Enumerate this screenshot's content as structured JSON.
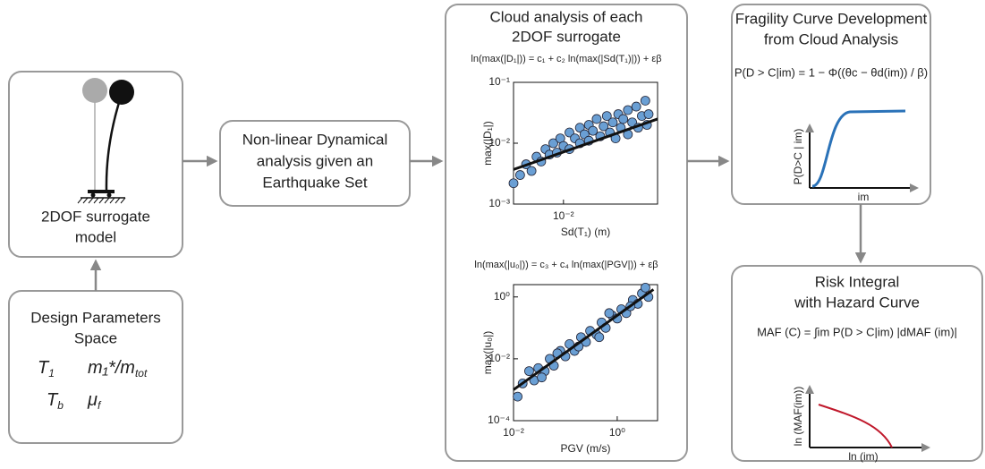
{
  "model_box": {
    "label_lines": [
      "2DOF surrogate",
      "model"
    ]
  },
  "design_box": {
    "label_lines": [
      "Design Parameters",
      "Space"
    ],
    "parameters": [
      {
        "symbol": "T",
        "subscript": "1"
      },
      {
        "symbol": "m₁*/m",
        "subscript": "tot"
      },
      {
        "symbol": "T",
        "subscript": "b"
      },
      {
        "symbol": "μ",
        "subscript": "f"
      }
    ]
  },
  "analysis_box": {
    "label_lines": [
      "Non-linear Dynamical",
      "analysis given an",
      "Earthquake Set"
    ]
  },
  "cloud_analysis": {
    "title_lines": [
      "Cloud analysis of each",
      "2DOF surrogate"
    ],
    "plots": [
      {
        "equation": "ln(max(|D₁|)) = c₁ + c₂ ln(max(|Sd(T₁)|)) + εβ",
        "x_label": "Sd(T₁) (m)",
        "y_label": "max(|D₁|)",
        "xlim": [
          0.0045,
          0.045
        ],
        "ylim": [
          0.001,
          0.1
        ],
        "xticks": [
          {
            "value": 0.01,
            "label": "10⁻²"
          }
        ],
        "yticks": [
          {
            "value": 0.001,
            "label": "10⁻³"
          },
          {
            "value": 0.01,
            "label": "10⁻²"
          },
          {
            "value": 0.1,
            "label": "10⁻¹"
          }
        ],
        "log_x": true,
        "log_y": true,
        "color": "#6a9fd4",
        "points": {
          "x": [
            0.005,
            0.0055,
            0.006,
            0.0065,
            0.007,
            0.0075,
            0.008,
            0.0085,
            0.009,
            0.0095,
            0.01,
            0.011,
            0.011,
            0.012,
            0.013,
            0.013,
            0.014,
            0.015,
            0.015,
            0.016,
            0.017,
            0.018,
            0.019,
            0.02,
            0.021,
            0.022,
            0.023,
            0.024,
            0.025,
            0.026,
            0.028,
            0.028,
            0.03,
            0.032,
            0.033,
            0.035,
            0.037,
            0.038,
            0.039,
            0.0045
          ],
          "y": [
            0.003,
            0.0045,
            0.0035,
            0.006,
            0.005,
            0.008,
            0.0065,
            0.01,
            0.007,
            0.012,
            0.009,
            0.015,
            0.008,
            0.012,
            0.018,
            0.01,
            0.014,
            0.02,
            0.011,
            0.016,
            0.025,
            0.013,
            0.019,
            0.028,
            0.015,
            0.022,
            0.012,
            0.03,
            0.018,
            0.025,
            0.035,
            0.014,
            0.022,
            0.04,
            0.018,
            0.028,
            0.05,
            0.02,
            0.03,
            0.0022
          ]
        },
        "fit": {
          "x": [
            0.0045,
            0.045
          ],
          "y": [
            0.0037,
            0.025
          ]
        }
      },
      {
        "equation": "ln(max(|u₀|)) = c₃ + c₄ ln(max(|PGV|)) + εβ",
        "x_label": "PGV (m/s)",
        "y_label": "max(|u₀|)",
        "xlim": [
          0.01,
          6
        ],
        "ylim": [
          0.0001,
          2.5
        ],
        "xticks": [
          {
            "value": 0.01,
            "label": "10⁻²"
          },
          {
            "value": 1,
            "label": "10⁰"
          }
        ],
        "yticks": [
          {
            "value": 0.0001,
            "label": "10⁻⁴"
          },
          {
            "value": 0.01,
            "label": "10⁻²"
          },
          {
            "value": 1,
            "label": "10⁰"
          }
        ],
        "log_x": true,
        "log_y": true,
        "color": "#6a9fd4",
        "points": {
          "x": [
            0.012,
            0.015,
            0.02,
            0.025,
            0.03,
            0.04,
            0.05,
            0.06,
            0.08,
            0.1,
            0.12,
            0.15,
            0.2,
            0.25,
            0.3,
            0.4,
            0.5,
            0.6,
            0.8,
            1,
            1.2,
            1.5,
            2,
            2.5,
            3,
            4,
            0.035,
            0.07,
            0.18,
            0.7,
            1.8,
            3.5,
            0.45
          ],
          "y": [
            0.0006,
            0.0016,
            0.004,
            0.002,
            0.005,
            0.004,
            0.01,
            0.006,
            0.018,
            0.012,
            0.03,
            0.018,
            0.05,
            0.035,
            0.08,
            0.06,
            0.15,
            0.1,
            0.25,
            0.2,
            0.4,
            0.3,
            0.8,
            0.6,
            1.3,
            1.0,
            0.0025,
            0.015,
            0.025,
            0.3,
            0.5,
            2,
            0.05
          ]
        },
        "fit": {
          "x": [
            0.01,
            5
          ],
          "y": [
            0.001,
            1.74
          ]
        }
      }
    ]
  },
  "fragility_box": {
    "title_lines": [
      "Fragility Curve Development",
      "from Cloud Analysis"
    ],
    "equation": "P(D > C|im) = 1 − Φ((θc − θd(im)) / β)",
    "y_label": "P(D>C | im)",
    "x_label": "im"
  },
  "risk_box": {
    "title_lines": [
      "Risk Integral",
      "with Hazard Curve"
    ],
    "equation": "MAF (C) = ∫im P(D > C|im) |dMAF (im)|",
    "y_label": "ln (MAF(im))",
    "x_label": "ln (im)"
  }
}
